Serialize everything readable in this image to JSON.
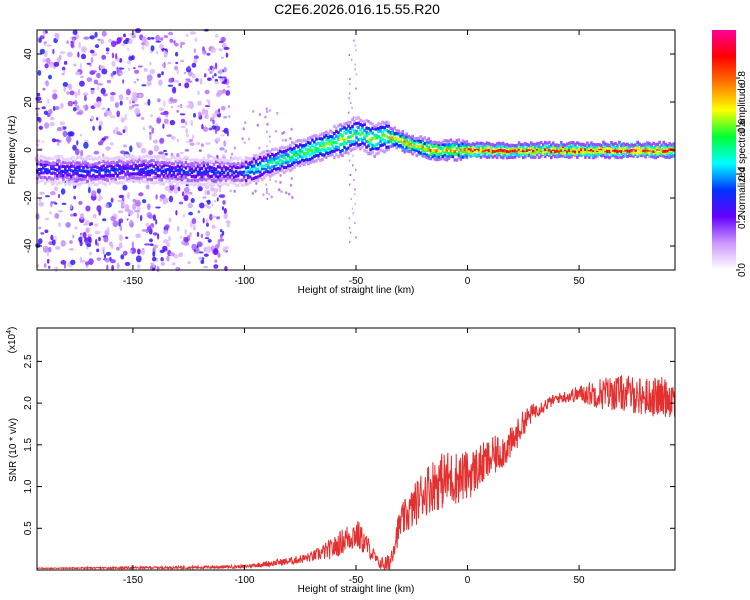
{
  "title": "C2E6.2026.016.15.55.R20",
  "chart_data": [
    {
      "type": "heatmap",
      "xlabel": "Height of straight line (km)",
      "ylabel": "Frequency (Hz)",
      "xlim": [
        -193,
        93
      ],
      "ylim": [
        -50,
        50
      ],
      "xticks": [
        -150,
        -100,
        -50,
        0,
        50
      ],
      "yticks": [
        -40,
        -20,
        0,
        20,
        40
      ],
      "noise_region_x_end": -107,
      "ridge": {
        "x": [
          -193,
          -170,
          -150,
          -120,
          -100,
          -90,
          -80,
          -70,
          -60,
          -52,
          -48,
          -42,
          -38,
          -32,
          -28,
          -20,
          -15,
          -10,
          0,
          10,
          30,
          50,
          70,
          93
        ],
        "y": [
          -8,
          -9,
          -8,
          -9,
          -9,
          -6,
          -3,
          0,
          3,
          6,
          7,
          4,
          6,
          5,
          3,
          1,
          0,
          0,
          0,
          0,
          0,
          0,
          0,
          0
        ]
      },
      "colorbar": {
        "label": "Normalized spectral amplitude",
        "ticks": [
          "0.0",
          "0.2",
          "0.4",
          "0.6",
          "0.8"
        ],
        "tick_values": [
          0,
          0.2,
          0.4,
          0.6,
          0.8
        ],
        "range": [
          0,
          1
        ],
        "colors": [
          "#ffffff",
          "#cc99ff",
          "#6600ff",
          "#0033ff",
          "#00ffff",
          "#00ff33",
          "#ffff00",
          "#ff7700",
          "#ff0000",
          "#ff0099"
        ]
      }
    },
    {
      "type": "line",
      "xlabel": "Height of straight line (km)",
      "ylabel": "SNR (10 * v/v)",
      "scale_label": "(x10",
      "scale_exponent": "4",
      "xlim": [
        -193,
        93
      ],
      "ylim": [
        0,
        2.9
      ],
      "xticks": [
        -150,
        -100,
        -50,
        0,
        50
      ],
      "yticks": [
        "0.5",
        "1.0",
        "1.5",
        "2.0",
        "2.5"
      ],
      "ytick_values": [
        0.5,
        1.0,
        1.5,
        2.0,
        2.5
      ],
      "color": "#e53030",
      "trend": {
        "x": [
          -193,
          -120,
          -100,
          -90,
          -80,
          -70,
          -60,
          -55,
          -50,
          -45,
          -40,
          -35,
          -33,
          -30,
          -25,
          -20,
          -15,
          -10,
          0,
          10,
          20,
          25,
          30,
          40,
          50,
          60,
          70,
          80,
          93
        ],
        "y": [
          0.02,
          0.03,
          0.04,
          0.07,
          0.1,
          0.15,
          0.25,
          0.35,
          0.42,
          0.28,
          0.08,
          0.05,
          0.3,
          0.55,
          0.7,
          0.9,
          1.0,
          1.05,
          1.1,
          1.3,
          1.5,
          1.75,
          1.9,
          2.05,
          2.1,
          2.1,
          2.1,
          2.05,
          2.05
        ]
      },
      "noise_amplitude": {
        "x": [
          -193,
          -100,
          -70,
          -50,
          -40,
          -30,
          -20,
          -10,
          0,
          20,
          30,
          40,
          50,
          60,
          70,
          93
        ],
        "y": [
          0.005,
          0.02,
          0.06,
          0.2,
          0.06,
          0.2,
          0.3,
          0.35,
          0.3,
          0.2,
          0.1,
          0.06,
          0.1,
          0.2,
          0.22,
          0.25
        ]
      }
    }
  ]
}
